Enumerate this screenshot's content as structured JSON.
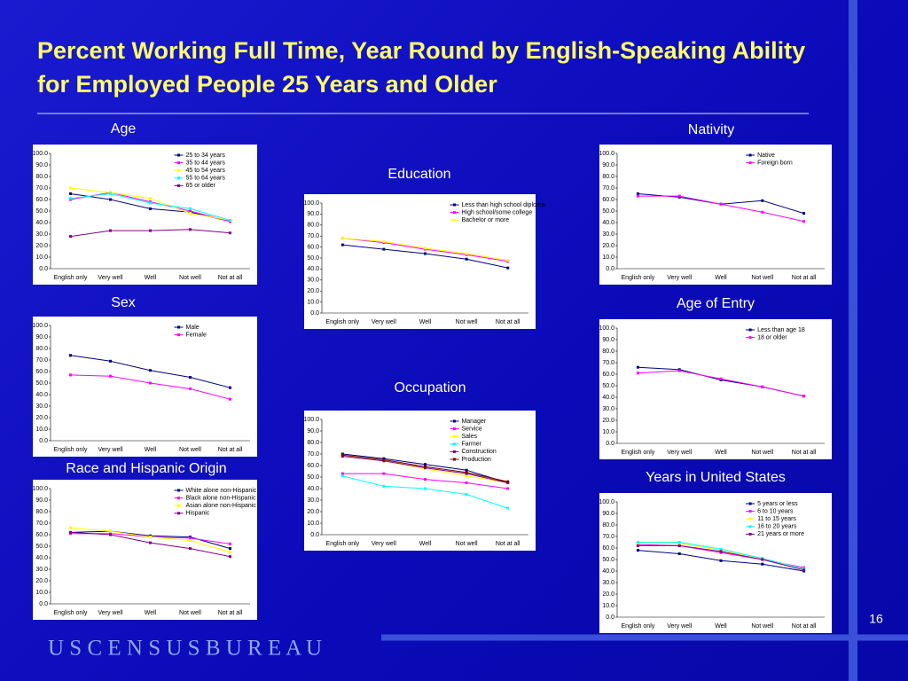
{
  "title": "Percent Working Full Time, Year Round by English-Speaking Ability for Employed People 25 Years and Older",
  "page_number": "16",
  "footer": "U S C E N S U S B U R E A U",
  "chart_data": [
    {
      "type": "line",
      "title": "Age",
      "categories": [
        "English only",
        "Very well",
        "Well",
        "Not well",
        "Not at all"
      ],
      "ylim": [
        0,
        100
      ],
      "grid": false,
      "yticks": [
        {
          "value": 0,
          "label": "0.0"
        },
        {
          "value": 10,
          "label": "10.0"
        },
        {
          "value": 20,
          "label": "20.0"
        },
        {
          "value": 30,
          "label": "30.0"
        },
        {
          "value": 40,
          "label": "40.0"
        },
        {
          "value": 50,
          "label": "50.0"
        },
        {
          "value": 60,
          "label": "60.0"
        },
        {
          "value": 70,
          "label": "70.0"
        },
        {
          "value": 80,
          "label": "80.0"
        },
        {
          "value": 90,
          "label": "90.0"
        },
        {
          "value": 100,
          "label": "100.0"
        }
      ],
      "series": [
        {
          "name": "25 to 34 years",
          "color": "#000080",
          "values": [
            65,
            60,
            52,
            49,
            41
          ]
        },
        {
          "name": "35 to 44 years",
          "color": "#ff00ff",
          "values": [
            60,
            66,
            58,
            50,
            41
          ]
        },
        {
          "name": "45 to 54 years",
          "color": "#ffff00",
          "values": [
            70,
            66,
            61,
            48,
            42
          ]
        },
        {
          "name": "55 to 64 years",
          "color": "#00ffff",
          "values": [
            61,
            65,
            57,
            52,
            42
          ]
        },
        {
          "name": "65 or older",
          "color": "#800080",
          "values": [
            28,
            33,
            33,
            34,
            31
          ]
        }
      ]
    },
    {
      "type": "line",
      "title": "Sex",
      "categories": [
        "English only",
        "Very well",
        "Well",
        "Not well",
        "Not at all"
      ],
      "ylim": [
        0,
        100
      ],
      "grid": false,
      "yticks": [
        {
          "value": 0,
          "label": "0.0"
        },
        {
          "value": 10,
          "label": "10.0"
        },
        {
          "value": 20,
          "label": "20.0"
        },
        {
          "value": 30,
          "label": "30.0"
        },
        {
          "value": 40,
          "label": "40.0"
        },
        {
          "value": 50,
          "label": "50.0"
        },
        {
          "value": 60,
          "label": "60.0"
        },
        {
          "value": 70,
          "label": "70.0"
        },
        {
          "value": 80,
          "label": "80.0"
        },
        {
          "value": 90,
          "label": "90.0"
        },
        {
          "value": 100,
          "label": "100.0"
        }
      ],
      "series": [
        {
          "name": "Male",
          "color": "#000080",
          "values": [
            74,
            69,
            61,
            55,
            46
          ]
        },
        {
          "name": "Female",
          "color": "#ff00ff",
          "values": [
            57,
            56,
            50,
            45,
            36
          ]
        }
      ]
    },
    {
      "type": "line",
      "title": "Race and Hispanic Origin",
      "categories": [
        "English only",
        "Very well",
        "Well",
        "Not well",
        "Not at all"
      ],
      "ylim": [
        0,
        100
      ],
      "grid": false,
      "yticks": [
        {
          "value": 0,
          "label": "0.0"
        },
        {
          "value": 10,
          "label": "10.0"
        },
        {
          "value": 20,
          "label": "20.0"
        },
        {
          "value": 30,
          "label": "30.0"
        },
        {
          "value": 40,
          "label": "40.0"
        },
        {
          "value": 50,
          "label": "50.0"
        },
        {
          "value": 60,
          "label": "60.0"
        },
        {
          "value": 70,
          "label": "70.0"
        },
        {
          "value": 80,
          "label": "80.0"
        },
        {
          "value": 90,
          "label": "90.0"
        },
        {
          "value": 100,
          "label": "100.0"
        }
      ],
      "series": [
        {
          "name": "White alone non-Hispanic",
          "color": "#000080",
          "values": [
            62,
            63,
            59,
            58,
            48
          ]
        },
        {
          "name": "Black alone non-Hispanic",
          "color": "#ff00ff",
          "values": [
            61,
            61,
            58,
            57,
            52
          ]
        },
        {
          "name": "Asian alone non-Hispanic",
          "color": "#ffff00",
          "values": [
            66,
            63,
            58,
            55,
            45
          ]
        },
        {
          "name": "Hispanic",
          "color": "#800080",
          "values": [
            62,
            60,
            53,
            48,
            41
          ]
        }
      ]
    },
    {
      "type": "line",
      "title": "Education",
      "categories": [
        "English only",
        "Very well",
        "Well",
        "Not well",
        "Not at all"
      ],
      "ylim": [
        0,
        100
      ],
      "grid": false,
      "yticks": [
        {
          "value": 0,
          "label": "0.0"
        },
        {
          "value": 10,
          "label": "10.0"
        },
        {
          "value": 20,
          "label": "20.0"
        },
        {
          "value": 30,
          "label": "30.0"
        },
        {
          "value": 40,
          "label": "40.0"
        },
        {
          "value": 50,
          "label": "50.0"
        },
        {
          "value": 60,
          "label": "60.0"
        },
        {
          "value": 70,
          "label": "70.0"
        },
        {
          "value": 80,
          "label": "80.0"
        },
        {
          "value": 90,
          "label": "90.0"
        },
        {
          "value": 100,
          "label": "100.0"
        }
      ],
      "series": [
        {
          "name": "Less than high school diploma",
          "color": "#000080",
          "values": [
            62,
            58,
            54,
            49,
            41
          ]
        },
        {
          "name": "High school/some college",
          "color": "#ff00ff",
          "values": [
            68,
            64,
            58,
            53,
            47
          ]
        },
        {
          "name": "Bachelor or more",
          "color": "#ffff00",
          "values": [
            68,
            65,
            59,
            54,
            48
          ]
        }
      ]
    },
    {
      "type": "line",
      "title": "Occupation",
      "categories": [
        "English only",
        "Very well",
        "Well",
        "Not well",
        "Not at all"
      ],
      "ylim": [
        0,
        100
      ],
      "grid": false,
      "yticks": [
        {
          "value": 0,
          "label": "0.0"
        },
        {
          "value": 10,
          "label": "10.0"
        },
        {
          "value": 20,
          "label": "20.0"
        },
        {
          "value": 30,
          "label": "30.0"
        },
        {
          "value": 40,
          "label": "40.0"
        },
        {
          "value": 50,
          "label": "50.0"
        },
        {
          "value": 60,
          "label": "60.0"
        },
        {
          "value": 70,
          "label": "70.0"
        },
        {
          "value": 80,
          "label": "80.0"
        },
        {
          "value": 90,
          "label": "90.0"
        },
        {
          "value": 100,
          "label": "100.0"
        }
      ],
      "series": [
        {
          "name": "Manager",
          "color": "#000080",
          "values": [
            70,
            66,
            61,
            56,
            45
          ]
        },
        {
          "name": "Service",
          "color": "#ff00ff",
          "values": [
            53,
            53,
            48,
            45,
            40
          ]
        },
        {
          "name": "Sales",
          "color": "#ffff00",
          "values": [
            68,
            64,
            57,
            51,
            45
          ]
        },
        {
          "name": "Farmer",
          "color": "#00ffff",
          "values": [
            51,
            42,
            40,
            35,
            23
          ]
        },
        {
          "name": "Construction",
          "color": "#800080",
          "values": [
            68,
            64,
            58,
            53,
            45
          ]
        },
        {
          "name": "Production",
          "color": "#800000",
          "values": [
            69,
            65,
            59,
            54,
            46
          ]
        }
      ]
    },
    {
      "type": "line",
      "title": "Nativity",
      "categories": [
        "English only",
        "Very well",
        "Well",
        "Not well",
        "Not at all"
      ],
      "ylim": [
        0,
        100
      ],
      "grid": false,
      "yticks": [
        {
          "value": 0,
          "label": "0.0"
        },
        {
          "value": 10,
          "label": "10.0"
        },
        {
          "value": 20,
          "label": "20.0"
        },
        {
          "value": 30,
          "label": "30.0"
        },
        {
          "value": 40,
          "label": "40.0"
        },
        {
          "value": 50,
          "label": "50.0"
        },
        {
          "value": 60,
          "label": "60.0"
        },
        {
          "value": 70,
          "label": "70.0"
        },
        {
          "value": 80,
          "label": "80.0"
        },
        {
          "value": 90,
          "label": "90.0"
        },
        {
          "value": 100,
          "label": "100.0"
        }
      ],
      "series": [
        {
          "name": "Native",
          "color": "#000080",
          "values": [
            65,
            62,
            56,
            59,
            48
          ]
        },
        {
          "name": "Foreign born",
          "color": "#ff00ff",
          "values": [
            63,
            63,
            56,
            49,
            41
          ]
        }
      ]
    },
    {
      "type": "line",
      "title": "Age of Entry",
      "categories": [
        "English only",
        "Very well",
        "Well",
        "Not well",
        "Not at all"
      ],
      "ylim": [
        0,
        100
      ],
      "grid": false,
      "yticks": [
        {
          "value": 0,
          "label": "0.0"
        },
        {
          "value": 10,
          "label": "10.0"
        },
        {
          "value": 20,
          "label": "20.0"
        },
        {
          "value": 30,
          "label": "30.0"
        },
        {
          "value": 40,
          "label": "40.0"
        },
        {
          "value": 50,
          "label": "50.0"
        },
        {
          "value": 60,
          "label": "60.0"
        },
        {
          "value": 70,
          "label": "70.0"
        },
        {
          "value": 80,
          "label": "80.0"
        },
        {
          "value": 90,
          "label": "90.0"
        },
        {
          "value": 100,
          "label": "100.0"
        }
      ],
      "series": [
        {
          "name": "Less than age 18",
          "color": "#000080",
          "values": [
            66,
            64,
            55,
            49,
            41
          ]
        },
        {
          "name": "18 or older",
          "color": "#ff00ff",
          "values": [
            61,
            63,
            56,
            49,
            41
          ]
        }
      ]
    },
    {
      "type": "line",
      "title": "Years in United States",
      "categories": [
        "English only",
        "Very well",
        "Well",
        "Not well",
        "Not at all"
      ],
      "ylim": [
        0,
        100
      ],
      "grid": false,
      "yticks": [
        {
          "value": 0,
          "label": "0.0"
        },
        {
          "value": 10,
          "label": "10.0"
        },
        {
          "value": 20,
          "label": "20.0"
        },
        {
          "value": 30,
          "label": "30.0"
        },
        {
          "value": 40,
          "label": "40.0"
        },
        {
          "value": 50,
          "label": "50.0"
        },
        {
          "value": 60,
          "label": "60.0"
        },
        {
          "value": 70,
          "label": "70.0"
        },
        {
          "value": 80,
          "label": "80.0"
        },
        {
          "value": 90,
          "label": "90.0"
        },
        {
          "value": 100,
          "label": "100.0"
        }
      ],
      "series": [
        {
          "name": "5 years or less",
          "color": "#000080",
          "values": [
            58,
            55,
            49,
            46,
            40
          ]
        },
        {
          "name": "6 to 10 years",
          "color": "#ff00ff",
          "values": [
            63,
            62,
            56,
            50,
            43
          ]
        },
        {
          "name": "11 to 15 years",
          "color": "#ffff00",
          "values": [
            64,
            64,
            58,
            51,
            42
          ]
        },
        {
          "name": "16 to 20 years",
          "color": "#00ffff",
          "values": [
            65,
            65,
            59,
            51,
            42
          ]
        },
        {
          "name": "21 years or more",
          "color": "#800080",
          "values": [
            62,
            62,
            57,
            50,
            41
          ]
        }
      ]
    }
  ]
}
